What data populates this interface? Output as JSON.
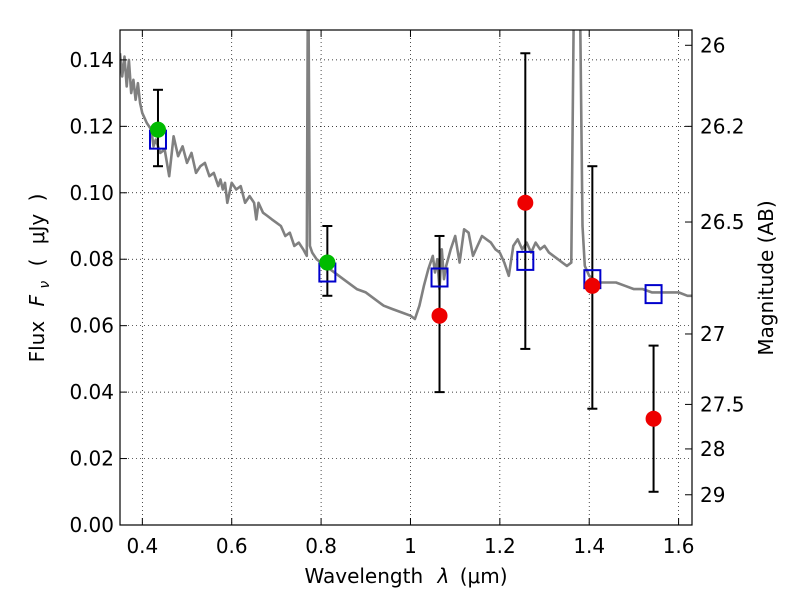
{
  "chart_data": {
    "type": "scatter",
    "xlabel_text": "Wavelength",
    "xlabel_symbol": "λ",
    "xlabel_unit": "(μm)",
    "ylabel_text": "Flux",
    "ylabel_symbol": "F",
    "ylabel_subscript": "ν",
    "ylabel_open": "(",
    "ylabel_unit": "μJy",
    "ylabel_close": ")",
    "ylabel_right": "Magnitude (AB)",
    "xlim": [
      0.35,
      1.63
    ],
    "ylim": [
      0.0,
      0.149
    ],
    "grid": true,
    "x_ticks": [
      0.4,
      0.6,
      0.8,
      1.0,
      1.2,
      1.4,
      1.6
    ],
    "x_tick_labels": [
      "0.4",
      "0.6",
      "0.8",
      "1",
      "1.2",
      "1.4",
      "1.6"
    ],
    "y_ticks": [
      0.0,
      0.02,
      0.04,
      0.06,
      0.08,
      0.1,
      0.12,
      0.14
    ],
    "y_tick_labels": [
      "0.00",
      "0.02",
      "0.04",
      "0.06",
      "0.08",
      "0.10",
      "0.12",
      "0.14"
    ],
    "right_ticks": [
      {
        "flux": 0.1444,
        "label": "26"
      },
      {
        "flux": 0.12,
        "label": "26.2"
      },
      {
        "flux": 0.0912,
        "label": "26.5"
      },
      {
        "flux": 0.0575,
        "label": "27"
      },
      {
        "flux": 0.0363,
        "label": "27.5"
      },
      {
        "flux": 0.0229,
        "label": "28"
      },
      {
        "flux": 0.0091,
        "label": "29"
      }
    ],
    "model_spectrum": {
      "color": "#808080",
      "x": [
        0.35,
        0.355,
        0.36,
        0.365,
        0.37,
        0.375,
        0.38,
        0.385,
        0.39,
        0.395,
        0.4,
        0.41,
        0.42,
        0.425,
        0.43,
        0.44,
        0.45,
        0.46,
        0.47,
        0.48,
        0.49,
        0.5,
        0.51,
        0.52,
        0.53,
        0.54,
        0.55,
        0.56,
        0.57,
        0.575,
        0.58,
        0.585,
        0.59,
        0.6,
        0.61,
        0.62,
        0.63,
        0.64,
        0.65,
        0.655,
        0.66,
        0.67,
        0.68,
        0.69,
        0.7,
        0.71,
        0.72,
        0.73,
        0.74,
        0.75,
        0.76,
        0.768,
        0.77,
        0.772,
        0.775,
        0.78,
        0.79,
        0.8,
        0.82,
        0.85,
        0.88,
        0.9,
        0.92,
        0.94,
        0.96,
        0.98,
        1.0,
        1.01,
        1.02,
        1.03,
        1.04,
        1.05,
        1.055,
        1.06,
        1.065,
        1.07,
        1.075,
        1.08,
        1.09,
        1.1,
        1.11,
        1.12,
        1.13,
        1.14,
        1.15,
        1.16,
        1.17,
        1.18,
        1.19,
        1.2,
        1.21,
        1.22,
        1.23,
        1.24,
        1.25,
        1.26,
        1.27,
        1.28,
        1.29,
        1.3,
        1.31,
        1.32,
        1.33,
        1.34,
        1.35,
        1.36,
        1.365,
        1.37,
        1.375,
        1.38,
        1.385,
        1.39,
        1.4,
        1.42,
        1.44,
        1.46,
        1.48,
        1.5,
        1.52,
        1.54,
        1.56,
        1.58,
        1.6,
        1.62,
        1.63
      ],
      "y": [
        0.142,
        0.135,
        0.141,
        0.132,
        0.14,
        0.13,
        0.134,
        0.128,
        0.133,
        0.127,
        0.124,
        0.121,
        0.119,
        0.114,
        0.116,
        0.112,
        0.113,
        0.105,
        0.117,
        0.111,
        0.114,
        0.109,
        0.112,
        0.106,
        0.108,
        0.109,
        0.105,
        0.106,
        0.102,
        0.104,
        0.101,
        0.103,
        0.097,
        0.103,
        0.101,
        0.102,
        0.097,
        0.099,
        0.097,
        0.092,
        0.097,
        0.094,
        0.093,
        0.092,
        0.091,
        0.09,
        0.087,
        0.088,
        0.084,
        0.085,
        0.083,
        0.081,
        0.15,
        0.15,
        0.084,
        0.082,
        0.08,
        0.079,
        0.077,
        0.074,
        0.071,
        0.07,
        0.068,
        0.066,
        0.065,
        0.064,
        0.063,
        0.062,
        0.066,
        0.072,
        0.077,
        0.081,
        0.076,
        0.08,
        0.071,
        0.083,
        0.074,
        0.078,
        0.083,
        0.087,
        0.079,
        0.089,
        0.088,
        0.081,
        0.084,
        0.087,
        0.086,
        0.085,
        0.083,
        0.082,
        0.079,
        0.075,
        0.084,
        0.086,
        0.083,
        0.085,
        0.082,
        0.085,
        0.083,
        0.084,
        0.082,
        0.081,
        0.08,
        0.079,
        0.078,
        0.079,
        0.15,
        0.15,
        0.15,
        0.15,
        0.09,
        0.078,
        0.075,
        0.073,
        0.073,
        0.073,
        0.072,
        0.071,
        0.071,
        0.07,
        0.07,
        0.07,
        0.07,
        0.069,
        0.069
      ]
    },
    "model_photometry": {
      "color": "#0000cc",
      "x": [
        0.435,
        0.814,
        1.065,
        1.257,
        1.407,
        1.544
      ],
      "y": [
        0.116,
        0.076,
        0.0745,
        0.0795,
        0.074,
        0.0695
      ]
    },
    "detections": {
      "color": "#00bb00",
      "x": [
        0.435,
        0.814
      ],
      "y": [
        0.119,
        0.079
      ]
    },
    "observations": {
      "color": "#ee0000",
      "x": [
        1.065,
        1.257,
        1.407,
        1.544
      ],
      "y": [
        0.063,
        0.097,
        0.072,
        0.032
      ]
    },
    "error_bars": [
      {
        "x": 0.435,
        "low": 0.108,
        "high": 0.131
      },
      {
        "x": 0.814,
        "low": 0.069,
        "high": 0.09
      },
      {
        "x": 1.065,
        "low": 0.04,
        "high": 0.087
      },
      {
        "x": 1.257,
        "low": 0.053,
        "high": 0.142
      },
      {
        "x": 1.407,
        "low": 0.035,
        "high": 0.108
      },
      {
        "x": 1.544,
        "low": 0.01,
        "high": 0.054
      }
    ]
  }
}
